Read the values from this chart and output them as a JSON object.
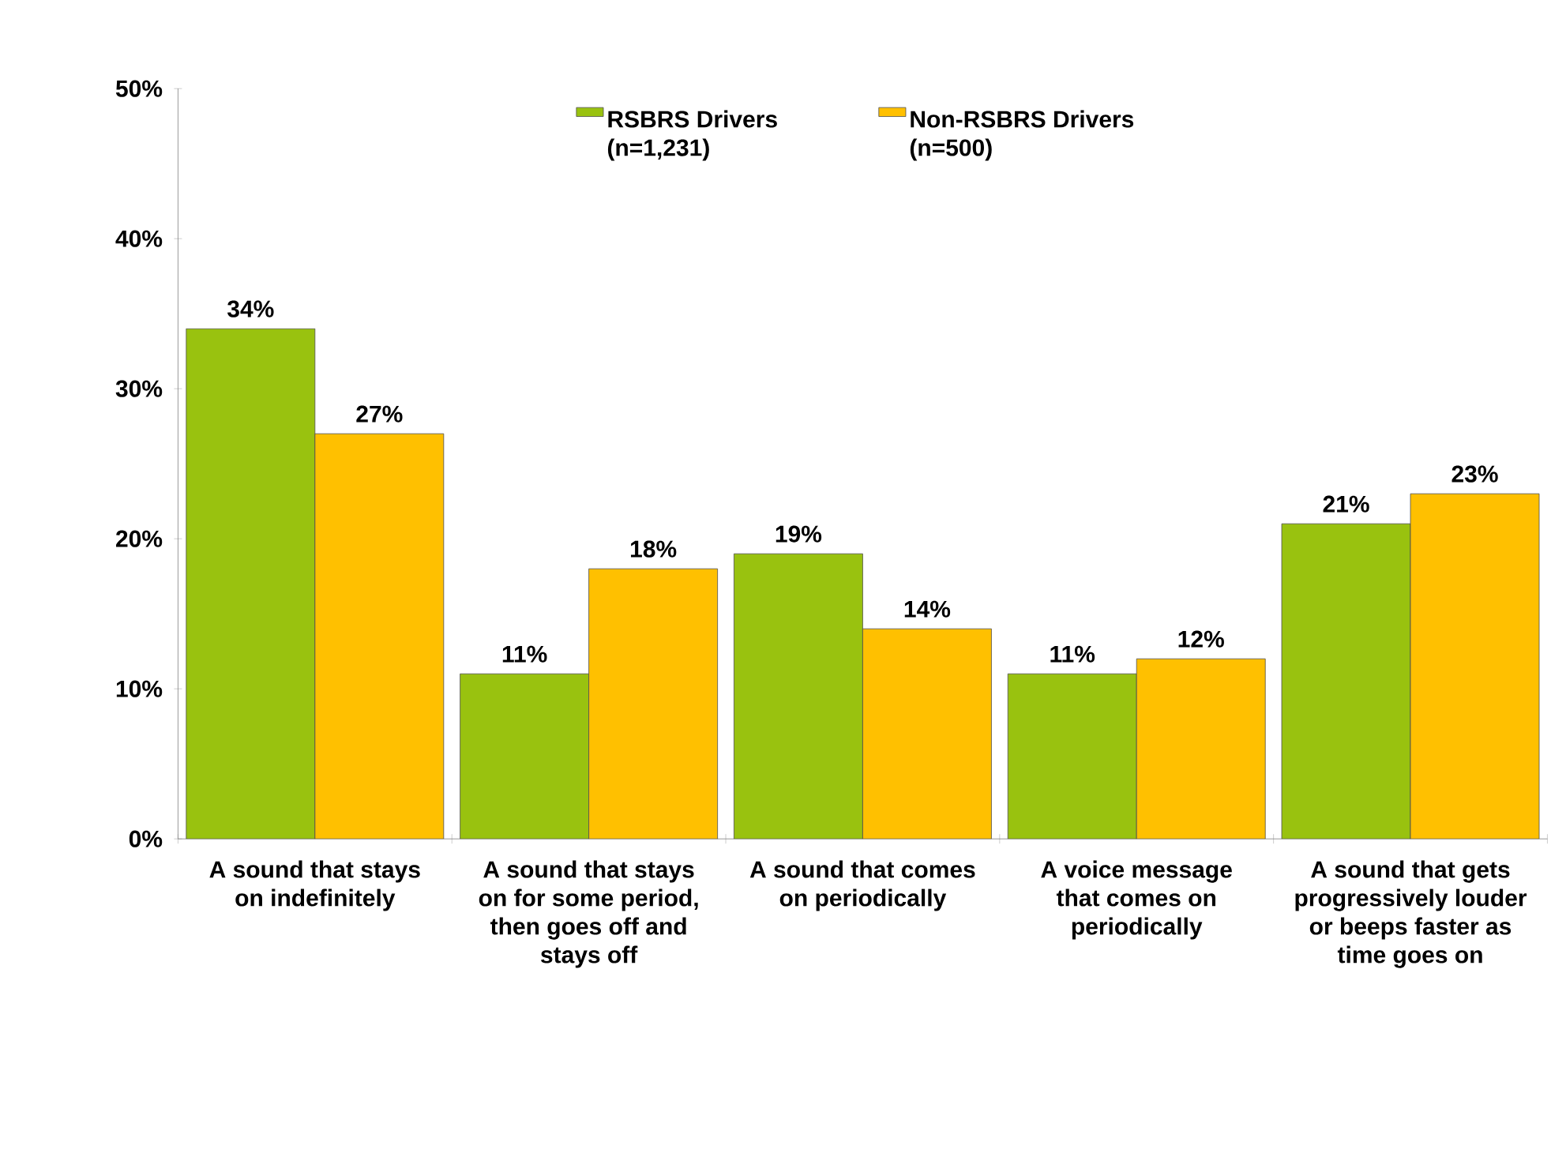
{
  "chart_data": {
    "type": "bar",
    "categories": [
      "A sound that stays on indefinitely",
      "A sound that stays on for some period, then goes off and stays off",
      "A sound that comes on periodically",
      "A voice message that comes on periodically",
      "A sound that gets progressively louder or beeps faster as time goes on"
    ],
    "series": [
      {
        "name": "RSBRS Drivers (n=1,231)",
        "color": "#99c20f",
        "values": [
          34,
          11,
          19,
          11,
          21
        ],
        "value_labels": [
          "34%",
          "11%",
          "19%",
          "11%",
          "21%"
        ]
      },
      {
        "name": "Non-RSBRS Drivers (n=500)",
        "color": "#ffc000",
        "values": [
          27,
          18,
          14,
          12,
          23
        ],
        "value_labels": [
          "27%",
          "18%",
          "14%",
          "12%",
          "23%"
        ]
      }
    ],
    "ylim": [
      0,
      50
    ],
    "yticks": [
      {
        "value": 0,
        "label": "0%"
      },
      {
        "value": 10,
        "label": "10%"
      },
      {
        "value": 20,
        "label": "20%"
      },
      {
        "value": 30,
        "label": "30%"
      },
      {
        "value": 40,
        "label": "40%"
      },
      {
        "value": 50,
        "label": "50%"
      }
    ],
    "legend": "top",
    "grid": false
  }
}
